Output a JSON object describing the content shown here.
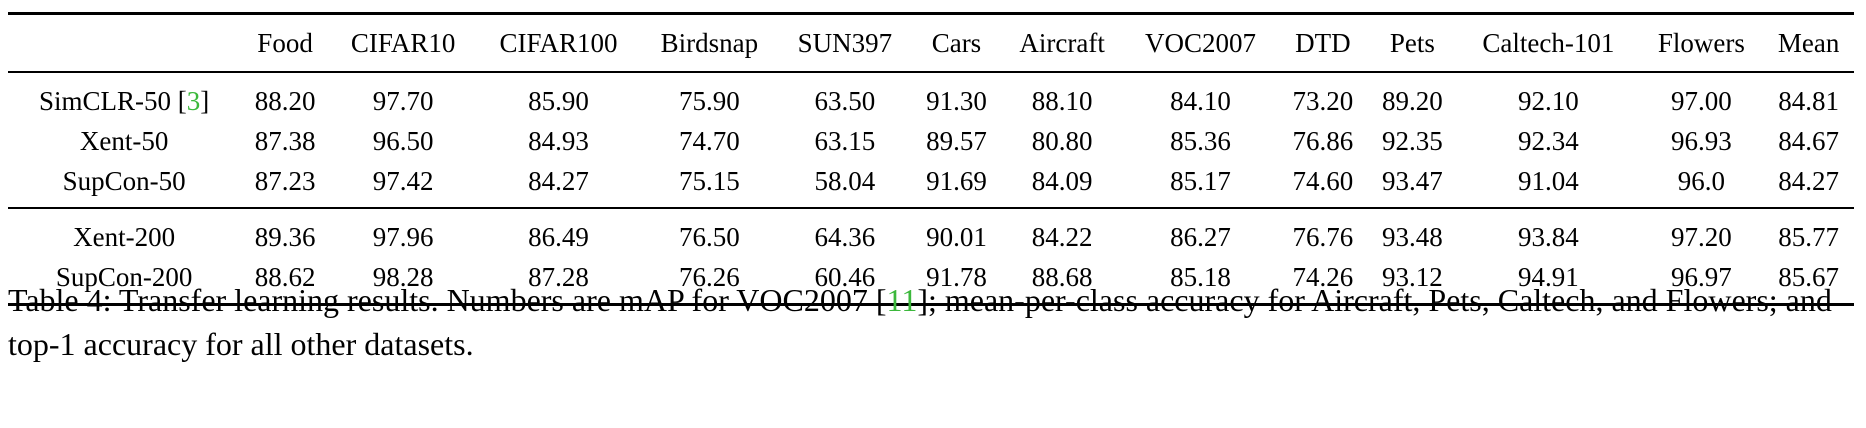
{
  "table": {
    "columns": [
      "Food",
      "CIFAR10",
      "CIFAR100",
      "Birdsnap",
      "SUN397",
      "Cars",
      "Aircraft",
      "VOC2007",
      "DTD",
      "Pets",
      "Caltech-101",
      "Flowers",
      "Mean"
    ],
    "groups": [
      [
        {
          "method": "SimCLR-50",
          "cite_open": "[",
          "cite_num": "3",
          "cite_close": "]",
          "values": [
            "88.20",
            "97.70",
            "85.90",
            "75.90",
            "63.50",
            "91.30",
            "88.10",
            "84.10",
            "73.20",
            "89.20",
            "92.10",
            "97.00",
            "84.81"
          ],
          "bold": [
            true,
            true,
            true,
            true,
            true,
            false,
            true,
            false,
            false,
            false,
            false,
            true,
            true
          ]
        },
        {
          "method": "Xent-50",
          "values": [
            "87.38",
            "96.50",
            "84.93",
            "74.70",
            "63.15",
            "89.57",
            "80.80",
            "85.36",
            "76.86",
            "92.35",
            "92.34",
            "96.93",
            "84.67"
          ],
          "bold": [
            false,
            false,
            false,
            false,
            false,
            false,
            false,
            true,
            true,
            false,
            true,
            false,
            true
          ]
        },
        {
          "method": "SupCon-50",
          "values": [
            "87.23",
            "97.42",
            "84.27",
            "75.15",
            "58.04",
            "91.69",
            "84.09",
            "85.17",
            "74.60",
            "93.47",
            "91.04",
            "96.0",
            "84.27"
          ],
          "bold": [
            false,
            false,
            false,
            false,
            false,
            true,
            false,
            false,
            false,
            true,
            false,
            false,
            true
          ]
        }
      ],
      [
        {
          "method": "Xent-200",
          "values": [
            "89.36",
            "97.96",
            "86.49",
            "76.50",
            "64.36",
            "90.01",
            "84.22",
            "86.27",
            "76.76",
            "93.48",
            "93.84",
            "97.20",
            "85.77"
          ],
          "bold": [
            true,
            false,
            false,
            true,
            true,
            false,
            false,
            true,
            true,
            true,
            false,
            true,
            true
          ]
        },
        {
          "method": "SupCon-200",
          "values": [
            "88.62",
            "98.28",
            "87.28",
            "76.26",
            "60.46",
            "91.78",
            "88.68",
            "85.18",
            "74.26",
            "93.12",
            "94.91",
            "96.97",
            "85.67"
          ],
          "bold": [
            false,
            true,
            true,
            false,
            false,
            true,
            true,
            false,
            false,
            false,
            true,
            false,
            true
          ]
        }
      ]
    ]
  },
  "caption": {
    "before": "Table 4: Transfer learning results. Numbers are mAP for VOC2007 [",
    "cite": "11",
    "after": "]; mean-per-class accuracy for Aircraft, Pets, Caltech, and Flowers; and top-1 accuracy for all other datasets."
  },
  "colors": {
    "citation": "#3cb83c",
    "text": "#000000"
  }
}
